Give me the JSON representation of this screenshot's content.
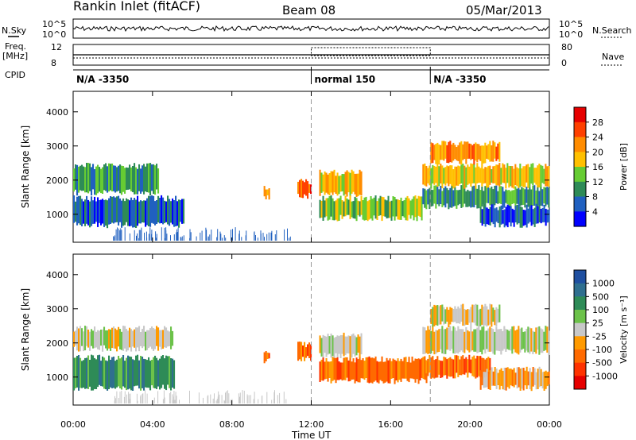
{
  "header": {
    "station": "Rankin Inlet (fitACF)",
    "beam": "Beam 08",
    "date": "05/Mar/2013"
  },
  "params": {
    "nsky_label": "N.Sky",
    "nsearch_label": "N.Search",
    "nsky_ticks": [
      "10^5",
      "10^0"
    ],
    "nsearch_ticks": [
      "10^5",
      "10^0"
    ],
    "freq_label": "Freq.",
    "freq_unit": "[MHz]",
    "freq_ticks": [
      "12",
      "8"
    ],
    "nave_label": "Nave",
    "nave_ticks": [
      "80",
      "0"
    ],
    "cpid_label": "CPID",
    "cpid_segments": [
      {
        "start_hr": 0,
        "end_hr": 12,
        "label": "N/A -3350"
      },
      {
        "start_hr": 12,
        "end_hr": 18,
        "label": "normal 150"
      },
      {
        "start_hr": 18,
        "end_hr": 24,
        "label": "N/A -3350"
      }
    ]
  },
  "x_axis": {
    "label": "Time UT",
    "ticks": [
      "00:00",
      "04:00",
      "08:00",
      "12:00",
      "16:00",
      "20:00",
      "00:00"
    ],
    "tick_hours": [
      0,
      4,
      8,
      12,
      16,
      20,
      24
    ]
  },
  "chart_data": [
    {
      "type": "heatmap",
      "name": "power",
      "ylabel": "Slant Range [km]",
      "ylim": [
        180,
        4600
      ],
      "yticks": [
        1000,
        2000,
        3000,
        4000
      ],
      "xlim_hours": [
        0,
        24
      ],
      "colorbar": {
        "label": "Power [dB]",
        "ticks": [
          "28",
          "24",
          "20",
          "16",
          "12",
          "8",
          "4"
        ],
        "colors": [
          "#e60000",
          "#ff4000",
          "#ff8c00",
          "#ffc000",
          "#66cc33",
          "#2e8b57",
          "#2060c0",
          "#0000ff"
        ]
      },
      "regions": [
        {
          "t0": 0.0,
          "t1": 4.3,
          "r0": 1600,
          "r1": 2450,
          "level": 5
        },
        {
          "t0": 0.0,
          "t1": 5.6,
          "r0": 650,
          "r1": 1500,
          "level": 6
        },
        {
          "t0": 9.6,
          "t1": 9.9,
          "r0": 1450,
          "r1": 1800,
          "level": 2
        },
        {
          "t0": 11.3,
          "t1": 12.0,
          "r0": 1500,
          "r1": 2000,
          "level": 1
        },
        {
          "t0": 12.4,
          "t1": 14.5,
          "r0": 1550,
          "r1": 2250,
          "level": 3
        },
        {
          "t0": 12.4,
          "t1": 17.6,
          "r0": 850,
          "r1": 1500,
          "level": 4
        },
        {
          "t0": 17.6,
          "t1": 24.0,
          "r0": 1200,
          "r1": 1800,
          "level": 5
        },
        {
          "t0": 17.6,
          "t1": 24.0,
          "r0": 1800,
          "r1": 2450,
          "level": 3
        },
        {
          "t0": 20.5,
          "t1": 24.0,
          "r0": 650,
          "r1": 1250,
          "level": 6
        },
        {
          "t0": 18.0,
          "t1": 21.5,
          "r0": 2500,
          "r1": 3100,
          "level": 2
        }
      ]
    },
    {
      "type": "heatmap",
      "name": "velocity",
      "ylabel": "Slant Range [km]",
      "ylim": [
        180,
        4600
      ],
      "yticks": [
        1000,
        2000,
        3000,
        4000
      ],
      "xlim_hours": [
        0,
        24
      ],
      "colorbar": {
        "label": "Velocity [m s⁻¹]",
        "ticks": [
          "1000",
          "500",
          "100",
          "25",
          "-25",
          "-100",
          "-500",
          "-1000"
        ],
        "colors": [
          "#1f4fa0",
          "#2f6f8f",
          "#2e8b57",
          "#6cc24a",
          "#c8c8c8",
          "#ff9a00",
          "#ff6a00",
          "#ff3300",
          "#e60000"
        ]
      },
      "regions": [
        {
          "t0": 0.0,
          "t1": 5.0,
          "r0": 1800,
          "r1": 2450,
          "level": 4
        },
        {
          "t0": 0.0,
          "t1": 5.1,
          "r0": 650,
          "r1": 1600,
          "level": 2
        },
        {
          "t0": 9.6,
          "t1": 9.9,
          "r0": 1450,
          "r1": 1800,
          "level": 6
        },
        {
          "t0": 11.3,
          "t1": 12.0,
          "r0": 1500,
          "r1": 2000,
          "level": 6
        },
        {
          "t0": 12.4,
          "t1": 17.8,
          "r0": 850,
          "r1": 1550,
          "level": 6
        },
        {
          "t0": 12.4,
          "t1": 14.5,
          "r0": 1600,
          "r1": 2250,
          "level": 4
        },
        {
          "t0": 17.6,
          "t1": 24.0,
          "r0": 1700,
          "r1": 2450,
          "level": 4
        },
        {
          "t0": 17.6,
          "t1": 21.0,
          "r0": 1000,
          "r1": 1600,
          "level": 6
        },
        {
          "t0": 20.5,
          "t1": 24.0,
          "r0": 650,
          "r1": 1250,
          "level": 5
        },
        {
          "t0": 18.0,
          "t1": 21.5,
          "r0": 2500,
          "r1": 3100,
          "level": 4
        }
      ]
    }
  ]
}
